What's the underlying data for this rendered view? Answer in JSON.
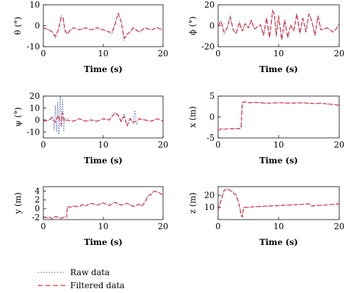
{
  "colors": {
    "raw": "#5b6fc4",
    "filtered": "#e0202a"
  },
  "legend": {
    "raw_label": "Raw data",
    "filtered_label": "Filtered data"
  },
  "chart_data": [
    {
      "id": "theta",
      "type": "line",
      "ylabel": "θ (°)",
      "xlabel": "Time (s)",
      "xlim": [
        0,
        20
      ],
      "ylim": [
        -10,
        10
      ],
      "xticks": [
        0,
        10,
        20
      ],
      "yticks": [
        -10,
        0,
        10
      ],
      "series": [
        {
          "name": "Raw data",
          "x": [
            0,
            1,
            1.5,
            2,
            2.5,
            3,
            3.3,
            3.6,
            4,
            4.5,
            5,
            6,
            7,
            8,
            9,
            10,
            11,
            11.5,
            12,
            12.5,
            13,
            13.5,
            14,
            14.5,
            15,
            16,
            17,
            18,
            19,
            20
          ],
          "y": [
            -1,
            -2,
            -3,
            -6,
            -2,
            5,
            4,
            -3,
            -4,
            -2,
            -1,
            -2,
            -1,
            -2,
            -1,
            -2,
            -3,
            -4,
            1,
            6,
            2,
            -7,
            -4,
            -3,
            -1,
            -3,
            -1,
            -2,
            -1,
            -2
          ]
        },
        {
          "name": "Filtered data",
          "x": [
            0,
            1,
            1.5,
            2,
            2.5,
            3,
            3.3,
            3.6,
            4,
            4.5,
            5,
            6,
            7,
            8,
            9,
            10,
            11,
            11.5,
            12,
            12.5,
            13,
            13.5,
            14,
            14.5,
            15,
            16,
            17,
            18,
            19,
            20
          ],
          "y": [
            -1,
            -2,
            -3,
            -5,
            -2,
            4,
            4,
            -2,
            -4,
            -2,
            -1,
            -2,
            -1,
            -2,
            -1,
            -2,
            -3,
            -3,
            1,
            6,
            2,
            -6,
            -4,
            -3,
            -1,
            -3,
            -1,
            -2,
            -1,
            -2
          ]
        }
      ]
    },
    {
      "id": "phi",
      "type": "line",
      "ylabel": "ϕ (°)",
      "xlabel": "Time (s)",
      "xlim": [
        0,
        20
      ],
      "ylim": [
        -20,
        20
      ],
      "xticks": [
        0,
        10,
        20
      ],
      "yticks": [
        -20,
        0,
        20
      ],
      "series": [
        {
          "name": "Raw data",
          "x": [
            0,
            0.5,
            1,
            1.5,
            2,
            2.5,
            3,
            3.5,
            4,
            4.5,
            5,
            5.5,
            6,
            7,
            7.5,
            8,
            8.5,
            9,
            9.3,
            9.6,
            10,
            10.5,
            11,
            11.5,
            12,
            12.5,
            13,
            13.5,
            14,
            14.5,
            15,
            15.5,
            16,
            16.5,
            17,
            18,
            19,
            19.5,
            20
          ],
          "y": [
            0,
            5,
            -8,
            -2,
            10,
            -4,
            -8,
            4,
            -5,
            2,
            -2,
            6,
            -3,
            1,
            -10,
            8,
            -12,
            15,
            12,
            -10,
            10,
            -14,
            6,
            -12,
            1,
            -5,
            12,
            -8,
            8,
            -6,
            12,
            4,
            -10,
            10,
            -4,
            -2,
            -6,
            -3,
            2
          ]
        },
        {
          "name": "Filtered data",
          "x": [
            0,
            0.5,
            1,
            1.5,
            2,
            2.5,
            3,
            3.5,
            4,
            4.5,
            5,
            5.5,
            6,
            7,
            7.5,
            8,
            8.5,
            9,
            9.3,
            9.6,
            10,
            10.5,
            11,
            11.5,
            12,
            12.5,
            13,
            13.5,
            14,
            14.5,
            15,
            15.5,
            16,
            16.5,
            17,
            18,
            19,
            19.5,
            20
          ],
          "y": [
            0,
            4,
            -6,
            -2,
            8,
            -4,
            -7,
            3,
            -5,
            2,
            -2,
            5,
            -3,
            1,
            -9,
            7,
            -11,
            14,
            11,
            -9,
            9,
            -13,
            5,
            -11,
            1,
            -5,
            11,
            -7,
            7,
            -6,
            11,
            4,
            -9,
            9,
            -4,
            -2,
            -6,
            -3,
            2
          ]
        }
      ]
    },
    {
      "id": "psi",
      "type": "line",
      "ylabel": "ψ (°)",
      "xlabel": "Time (s)",
      "xlim": [
        0,
        20
      ],
      "ylim": [
        -15,
        20
      ],
      "xticks": [
        0,
        10,
        20
      ],
      "yticks": [
        -10,
        0,
        10,
        20
      ],
      "series": [
        {
          "name": "Raw data",
          "x": [
            0,
            1,
            1.5,
            1.8,
            2,
            2.2,
            2.4,
            2.6,
            2.8,
            3,
            3.2,
            3.4,
            3.6,
            4,
            5,
            6,
            7,
            8,
            9,
            10,
            11,
            12,
            12.5,
            13,
            13.5,
            14,
            14.5,
            15,
            15.3,
            15.6,
            16,
            17,
            18,
            19,
            20
          ],
          "y": [
            -1,
            0,
            3,
            -8,
            12,
            -10,
            15,
            -12,
            20,
            -6,
            18,
            -10,
            2,
            0,
            -1,
            1,
            -1,
            0,
            -1,
            1,
            0,
            6,
            3,
            -2,
            5,
            -5,
            2,
            -3,
            8,
            -4,
            1,
            0,
            -1,
            1,
            -1
          ]
        },
        {
          "name": "Filtered data",
          "x": [
            0,
            1,
            1.5,
            2,
            2.5,
            3,
            3.2,
            3.5,
            4,
            5,
            6,
            7,
            8,
            9,
            10,
            11,
            12,
            12.5,
            13,
            13.5,
            14,
            14.5,
            15,
            15.5,
            16,
            17,
            18,
            19,
            20
          ],
          "y": [
            -1,
            0,
            2,
            -2,
            4,
            -4,
            6,
            -1,
            0,
            -1,
            1,
            -1,
            0,
            -1,
            1,
            0,
            6,
            4,
            -1,
            3,
            -5,
            1,
            -2,
            -1,
            1,
            0,
            -1,
            1,
            -1
          ]
        }
      ]
    },
    {
      "id": "x",
      "type": "line",
      "ylabel": "x (m)",
      "xlabel": "Time (s)",
      "xlim": [
        0,
        20
      ],
      "ylim": [
        -5,
        5
      ],
      "xticks": [
        0,
        10,
        20
      ],
      "yticks": [
        -5,
        0,
        5
      ],
      "series": [
        {
          "name": "Raw data",
          "x": [
            0,
            0.5,
            1,
            2,
            3,
            3.8,
            4,
            4.3,
            5,
            6,
            8,
            10,
            12,
            14,
            16,
            17,
            18,
            19,
            20
          ],
          "y": [
            -3.2,
            -2.8,
            -2.9,
            -2.8,
            -2.8,
            -2.7,
            3.5,
            3.6,
            3.4,
            3.5,
            3.3,
            3.4,
            3.3,
            3.4,
            3.2,
            3.3,
            3.1,
            3.0,
            2.8
          ]
        },
        {
          "name": "Filtered data",
          "x": [
            0,
            0.5,
            1,
            2,
            3,
            3.8,
            4,
            4.3,
            5,
            6,
            8,
            10,
            12,
            14,
            16,
            17,
            18,
            19,
            20
          ],
          "y": [
            -3.2,
            -2.8,
            -2.9,
            -2.8,
            -2.8,
            -2.7,
            3.5,
            3.6,
            3.4,
            3.5,
            3.3,
            3.4,
            3.3,
            3.4,
            3.2,
            3.3,
            3.1,
            3.0,
            2.8
          ]
        }
      ]
    },
    {
      "id": "y",
      "type": "line",
      "ylabel": "y (m)",
      "xlabel": "Time (s)",
      "xlim": [
        0,
        20
      ],
      "ylim": [
        -2.5,
        5
      ],
      "xticks": [
        0,
        10,
        20
      ],
      "yticks": [
        -2,
        0,
        2,
        4
      ],
      "series": [
        {
          "name": "Raw data",
          "x": [
            0,
            0.5,
            1,
            1.5,
            2,
            2.5,
            3,
            3.5,
            3.9,
            4,
            4.5,
            5,
            6,
            6.5,
            7,
            8,
            9,
            10,
            11,
            12,
            13,
            14,
            15,
            16,
            16.5,
            17,
            17.5,
            18,
            18.5,
            19,
            19.5,
            20
          ],
          "y": [
            -1.8,
            -2.2,
            -1.9,
            -2.4,
            -1.8,
            -2.0,
            -2.3,
            -1.9,
            -2.0,
            0.5,
            0.3,
            0.6,
            0.4,
            1.0,
            0.6,
            1.2,
            0.8,
            1.3,
            0.7,
            1.5,
            0.8,
            1.2,
            0.5,
            1.0,
            0.6,
            1.5,
            3.0,
            3.2,
            4.0,
            3.8,
            3.5,
            3.0
          ]
        },
        {
          "name": "Filtered data",
          "x": [
            0,
            0.5,
            1,
            1.5,
            2,
            2.5,
            3,
            3.5,
            3.9,
            4,
            4.5,
            5,
            6,
            6.5,
            7,
            8,
            9,
            10,
            11,
            12,
            13,
            14,
            15,
            16,
            16.5,
            17,
            17.5,
            18,
            18.5,
            19,
            19.5,
            20
          ],
          "y": [
            -1.8,
            -2.1,
            -1.9,
            -2.3,
            -1.8,
            -2.0,
            -2.2,
            -1.9,
            -2.0,
            0.5,
            0.3,
            0.6,
            0.4,
            0.9,
            0.6,
            1.2,
            0.8,
            1.3,
            0.7,
            1.4,
            0.8,
            1.2,
            0.5,
            1.0,
            0.6,
            1.5,
            3.0,
            3.2,
            4.0,
            3.8,
            3.5,
            3.0
          ]
        }
      ]
    },
    {
      "id": "z",
      "type": "line",
      "ylabel": "z (m)",
      "xlabel": "Time (s)",
      "xlim": [
        0,
        20
      ],
      "ylim": [
        0,
        27
      ],
      "xticks": [
        0,
        10,
        20
      ],
      "yticks": [
        10,
        20
      ],
      "series": [
        {
          "name": "Raw data",
          "x": [
            0,
            0.5,
            1,
            1.5,
            2,
            3,
            3.5,
            3.8,
            4,
            4.2,
            5,
            6,
            8,
            10,
            12,
            14,
            15,
            15.5,
            16,
            18,
            20
          ],
          "y": [
            8,
            16,
            24,
            25,
            24,
            20,
            12,
            4,
            2,
            10,
            10,
            10.5,
            11,
            11.5,
            12,
            12.5,
            13,
            11,
            11.5,
            12,
            13
          ]
        },
        {
          "name": "Filtered data",
          "x": [
            0,
            0.5,
            1,
            1.5,
            2,
            3,
            3.5,
            3.8,
            4,
            4.2,
            5,
            6,
            8,
            10,
            12,
            14,
            15,
            15.5,
            16,
            18,
            20
          ],
          "y": [
            8,
            16,
            24,
            25,
            24,
            20,
            12,
            4,
            2,
            10,
            10,
            10.5,
            11,
            11.5,
            12,
            12.5,
            13,
            11,
            11.5,
            12,
            13
          ]
        }
      ]
    }
  ]
}
